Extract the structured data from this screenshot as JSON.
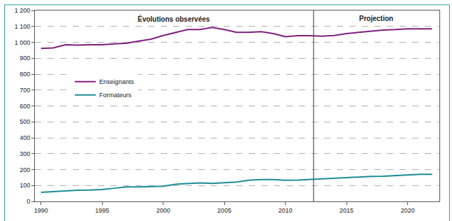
{
  "chart_data": {
    "type": "line",
    "x": [
      1990,
      1991,
      1992,
      1993,
      1994,
      1995,
      1996,
      1997,
      1998,
      1999,
      2000,
      2001,
      2002,
      2003,
      2004,
      2005,
      2006,
      2007,
      2008,
      2009,
      2010,
      2011,
      2012,
      2013,
      2014,
      2015,
      2016,
      2017,
      2018,
      2019,
      2020,
      2021,
      2022
    ],
    "series": [
      {
        "name": "Enseignants",
        "color": "#7f1f7f",
        "values": [
          962,
          965,
          985,
          982,
          985,
          985,
          990,
          995,
          1008,
          1020,
          1043,
          1060,
          1080,
          1080,
          1093,
          1080,
          1063,
          1063,
          1067,
          1055,
          1035,
          1042,
          1042,
          1038,
          1043,
          1055,
          1063,
          1072,
          1077,
          1080,
          1085,
          1085,
          1085
        ]
      },
      {
        "name": "Formateurs",
        "color": "#1a8c96",
        "values": [
          57,
          62,
          66,
          70,
          71,
          75,
          83,
          91,
          91,
          92,
          96,
          108,
          113,
          117,
          113,
          117,
          122,
          133,
          137,
          137,
          133,
          134,
          138,
          140,
          144,
          148,
          153,
          157,
          158,
          163,
          167,
          170,
          170
        ]
      }
    ],
    "xlim": [
      1989.5,
      2022.6
    ],
    "xticks": [
      1990,
      1995,
      2000,
      2005,
      2010,
      2015,
      2020
    ],
    "ylim": [
      0,
      1200
    ],
    "yticks": [
      0,
      100,
      200,
      300,
      400,
      500,
      600,
      700,
      800,
      900,
      {
        "value": 1000,
        "label": "1 000"
      },
      {
        "value": 1100,
        "label": "1 100"
      },
      {
        "value": 1200,
        "label": "1 200"
      }
    ],
    "divider_x": 2012.3,
    "annotations": [
      {
        "text": "Évolutions observées",
        "side": "before_divider"
      },
      {
        "text": "Projection",
        "side": "after_divider"
      }
    ],
    "grid": true,
    "legend": "left"
  }
}
